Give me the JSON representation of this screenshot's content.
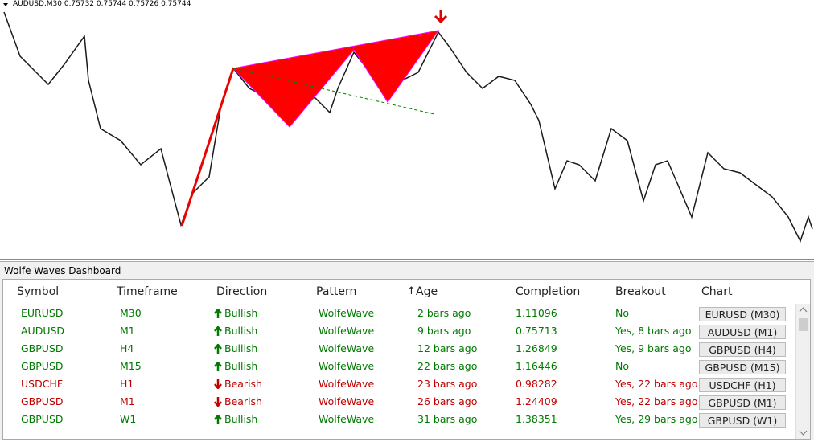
{
  "chart_header": "AUDUSD,M30  0.75732 0.75744 0.75726 0.75744",
  "dashboard": {
    "title": "Wolfe Waves Dashboard",
    "columns": [
      "Symbol",
      "Timeframe",
      "Direction",
      "Pattern",
      "Age",
      "Completion",
      "Breakout",
      "Chart"
    ],
    "rows": [
      {
        "color": "#007a00",
        "arrow": "up",
        "cells": [
          "EURUSD",
          "M30",
          "Bullish",
          "WolfeWave",
          "2 bars ago",
          "1.11096",
          "No",
          "EURUSD (M30)"
        ]
      },
      {
        "color": "#007a00",
        "arrow": "up",
        "cells": [
          "AUDUSD",
          "M1",
          "Bullish",
          "WolfeWave",
          "9 bars ago",
          "0.75713",
          "Yes, 8 bars ago",
          "AUDUSD (M1)"
        ]
      },
      {
        "color": "#007a00",
        "arrow": "up",
        "cells": [
          "GBPUSD",
          "H4",
          "Bullish",
          "WolfeWave",
          "12 bars ago",
          "1.26849",
          "Yes, 9 bars ago",
          "GBPUSD (H4)"
        ]
      },
      {
        "color": "#007a00",
        "arrow": "up",
        "cells": [
          "GBPUSD",
          "M15",
          "Bullish",
          "WolfeWave",
          "22 bars ago",
          "1.16446",
          "No",
          "GBPUSD (M15)"
        ]
      },
      {
        "color": "#c00000",
        "arrow": "down",
        "cells": [
          "USDCHF",
          "H1",
          "Bearish",
          "WolfeWave",
          "23 bars ago",
          "0.98282",
          "Yes, 22 bars ago",
          "USDCHF (H1)"
        ]
      },
      {
        "color": "#c00000",
        "arrow": "down",
        "cells": [
          "GBPUSD",
          "M1",
          "Bearish",
          "WolfeWave",
          "26 bars ago",
          "1.24409",
          "Yes, 22 bars ago",
          "GBPUSD (M1)"
        ]
      },
      {
        "color": "#007a00",
        "arrow": "up",
        "cells": [
          "GBPUSD",
          "W1",
          "Bullish",
          "WolfeWave",
          "31 bars ago",
          "1.38351",
          "Yes, 29 bars ago",
          "GBPUSD (W1)"
        ]
      }
    ]
  }
}
